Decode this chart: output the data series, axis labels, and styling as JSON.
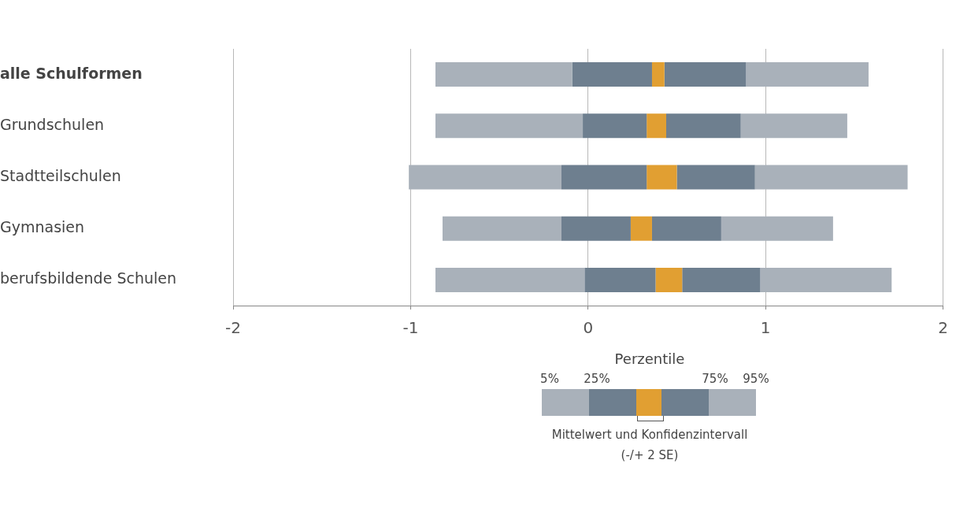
{
  "chart_data": {
    "type": "bar",
    "orientation": "horizontal",
    "categories": [
      "alle Schulformen",
      "Grundschulen",
      "Stadtteilschulen",
      "Gymnasien",
      "berufsbildende Schulen"
    ],
    "series": [
      {
        "color": "#a9b1ba",
        "base": [
          -0.86,
          -0.86,
          -1.01,
          -0.82,
          -0.86
        ],
        "values": [
          0.77,
          0.83,
          0.86,
          0.67,
          0.84
        ]
      },
      {
        "color": "#6e7f8f",
        "base": [
          -0.09,
          -0.03,
          -0.15,
          -0.15,
          -0.02
        ],
        "values": [
          0.45,
          0.36,
          0.48,
          0.39,
          0.4
        ]
      },
      {
        "color": "#e19f32",
        "base": [
          0.36,
          0.33,
          0.33,
          0.24,
          0.38
        ],
        "values": [
          0.07,
          0.11,
          0.17,
          0.12,
          0.15
        ]
      },
      {
        "color": "#6e7f8f",
        "base": [
          0.43,
          0.44,
          0.5,
          0.36,
          0.53
        ],
        "values": [
          0.46,
          0.42,
          0.44,
          0.39,
          0.44
        ]
      },
      {
        "color": "#a9b1ba",
        "base": [
          0.89,
          0.86,
          0.94,
          0.75,
          0.97
        ],
        "values": [
          0.69,
          0.6,
          0.86,
          0.63,
          0.74
        ]
      }
    ],
    "xlim": [
      -2,
      2
    ],
    "xticks": [
      -2,
      -1,
      0,
      1,
      2
    ],
    "grid": "x",
    "line_style": "dashed",
    "legend": false,
    "annotations": [
      "Perzentile",
      "5%",
      "25%",
      "75%",
      "95%",
      "Mittelwert und Konfidenzintervall",
      "(-/+ 2 SE)"
    ]
  }
}
